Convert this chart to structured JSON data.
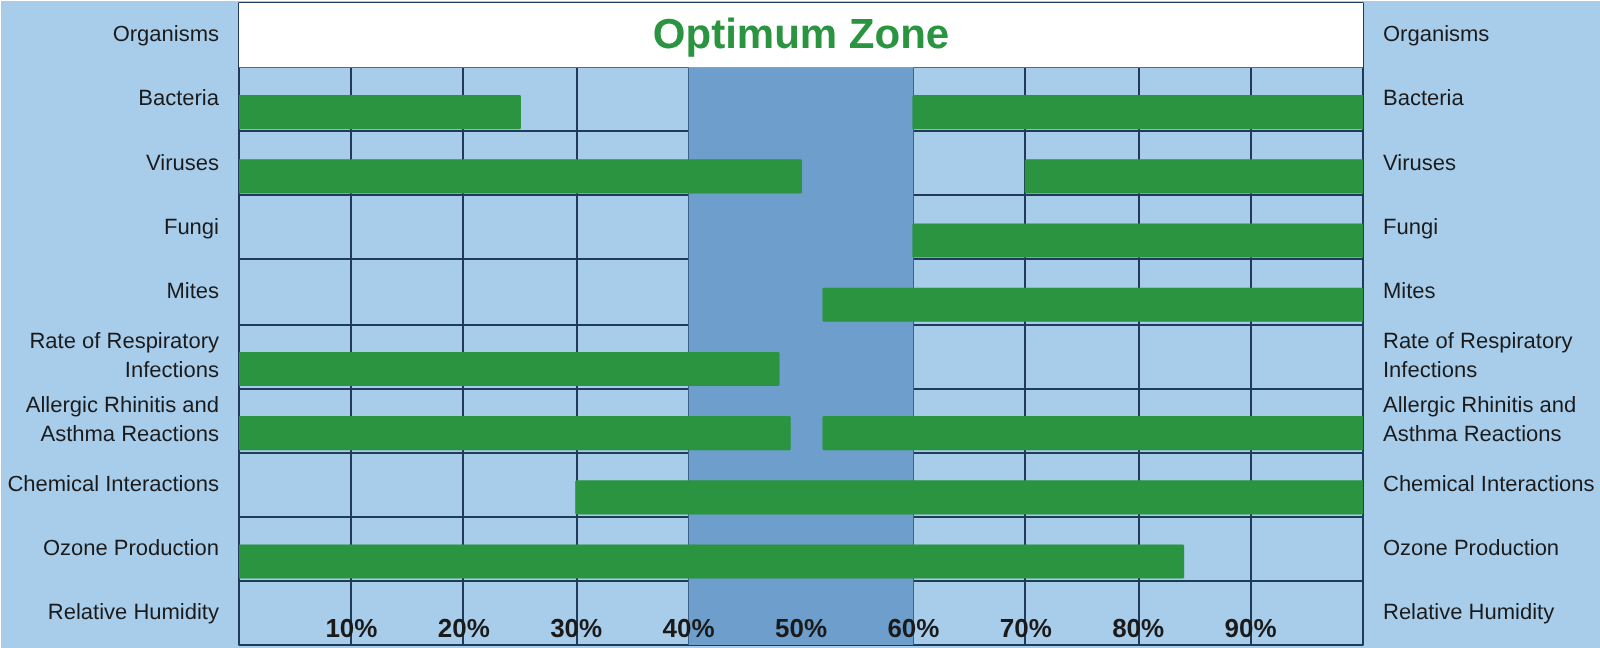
{
  "chart_data": {
    "type": "bar",
    "orientation": "horizontal",
    "ylabel": "Organisms",
    "y2label": "Organisms",
    "xlabel": "Relative Humidity",
    "categories": [
      "Bacteria",
      "Viruses",
      "Fungi",
      "Mites",
      "Rate of Respiratory Infections",
      "Allergic Rhinitis and Asthma Reactions",
      "Chemical Interactions",
      "Ozone Production"
    ],
    "series": [
      {
        "color": "#2a9440",
        "base": [
          0,
          0,
          null,
          null,
          0,
          0,
          null,
          0
        ],
        "values": [
          25,
          50,
          null,
          null,
          48,
          49,
          null,
          84
        ]
      },
      {
        "color": "#2a9440",
        "base": [
          60,
          70,
          60,
          52,
          null,
          52,
          30,
          null
        ],
        "values": [
          40,
          30,
          40,
          48,
          null,
          48,
          70,
          null
        ]
      }
    ],
    "xlim": [
      0,
      100
    ],
    "xticks": [
      {
        "value": 10,
        "label": "10%"
      },
      {
        "value": 20,
        "label": "20%"
      },
      {
        "value": 30,
        "label": "30%"
      },
      {
        "value": 40,
        "label": "40%"
      },
      {
        "value": 50,
        "label": "50%"
      },
      {
        "value": 60,
        "label": "60%"
      },
      {
        "value": 70,
        "label": "70%"
      },
      {
        "value": 80,
        "label": "80%"
      },
      {
        "value": 90,
        "label": "90%"
      }
    ],
    "bands": [
      {
        "axis": "x",
        "from": 40,
        "to": 60,
        "label": "Optimum Zone",
        "color": "#6e9ecb"
      }
    ],
    "grid": true
  }
}
